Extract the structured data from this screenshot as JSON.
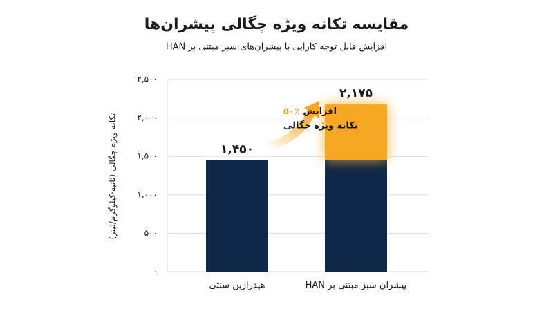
{
  "chart_data": {
    "type": "stacked_bar",
    "title": "مقایسه تکانه ویژه چگالی پیشران‌ها",
    "subtitle": "افزایش قابل توجه کارایی با پیشران‌های سبز مبتنی بر HAN",
    "y_label": "تکانه ویژه چگالی (ثانیه·کیلوگرم/لیتر)",
    "categories": [
      "هیدرازین سنتی",
      "پیشران سبز مبتنی بر HAN"
    ],
    "series": [
      {
        "color": "#0f2748",
        "values": [
          1450,
          1450
        ]
      },
      {
        "color": "#f5a623",
        "values": [
          null,
          725
        ]
      }
    ],
    "totals": [
      1450,
      2175
    ],
    "value_labels": [
      "۱,۴۵۰",
      "۲,۱۷۵"
    ],
    "annotation": {
      "highlight": "٪۵۰",
      "text": "افزایش",
      "line2": "تکانه ویژه چگالی"
    },
    "ylim": [
      0,
      2500
    ],
    "yticks": [
      {
        "value": 0,
        "label": "۰"
      },
      {
        "value": 500,
        "label": "۵۰۰"
      },
      {
        "value": 1000,
        "label": "۱,۰۰۰"
      },
      {
        "value": 1500,
        "label": "۱,۵۰۰"
      },
      {
        "value": 2000,
        "label": "۲,۰۰۰"
      },
      {
        "value": 2500,
        "label": "۲,۵۰۰"
      }
    ],
    "grid": true
  }
}
